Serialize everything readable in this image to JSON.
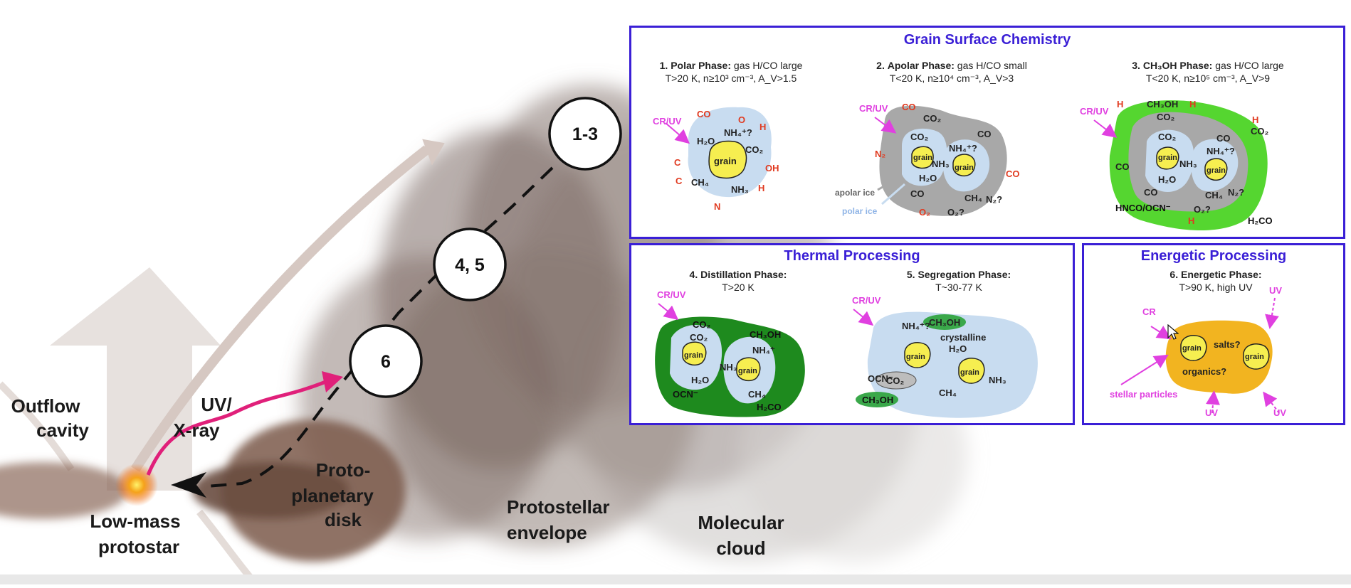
{
  "scene_labels": {
    "outflow_line1": "Outflow",
    "outflow_line2": "cavity",
    "uv_line1": "UV/",
    "uv_line2": "X-ray",
    "protostar_line1": "Low-mass",
    "protostar_line2": "protostar",
    "disk_line1": "Proto-",
    "disk_line2": "planetary",
    "disk_line3": "disk",
    "envelope_line1": "Protostellar",
    "envelope_line2": "envelope",
    "cloud_line1": "Molecular",
    "cloud_line2": "cloud"
  },
  "markers": [
    "1-3",
    "4, 5",
    "6"
  ],
  "colors": {
    "panel_border": "#3a1fd6",
    "uv_arrow": "#e0207a",
    "cr_uv": "#e040e0",
    "polar_ice": "#c8dcf0",
    "apolar_ice": "#a8a8a8",
    "ch3oh_layer": "#55d630",
    "distillation_layer": "#1e8a1e",
    "grain": "#f6ee50",
    "energetic_blob": "#f2b420",
    "red_species": "#e03a20"
  },
  "grain_surface": {
    "title": "Grain Surface Chemistry",
    "phase1": {
      "num": "1.",
      "name": "Polar Phase:",
      "cond1": "gas H/CO large",
      "cond2": "T>20 K, n≥10³ cm⁻³, A_V>1.5"
    },
    "phase2": {
      "num": "2.",
      "name": "Apolar Phase:",
      "cond1": "gas H/CO small",
      "cond2": "T<20 K, n≥10⁴ cm⁻³, A_V>3"
    },
    "phase3": {
      "num": "3.",
      "name": "CH₃OH Phase:",
      "cond1": "gas H/CO large",
      "cond2": "T<20 K, n≥10⁵ cm⁻³, A_V>9"
    },
    "p1_species": [
      "CR/UV",
      "CO",
      "O",
      "H",
      "H₂O",
      "NH₄⁺?",
      "CO₂",
      "OH",
      "H",
      "C",
      "CH₄",
      "NH₃",
      "H",
      "N",
      "grain"
    ],
    "p2_species": [
      "CR/UV",
      "CO",
      "CO₂",
      "CO",
      "N₂",
      "CO₂",
      "NH₄⁺?",
      "NH₃",
      "H₂O",
      "CO",
      "CH₄",
      "N₂?",
      "O₂",
      "O₂?",
      "CO",
      "grain",
      "grain",
      "apolar ice",
      "polar ice"
    ],
    "p3_species": [
      "CR/UV",
      "H",
      "CH₃OH",
      "H",
      "H",
      "CO₂",
      "CO₂",
      "CO₂",
      "CO",
      "CO",
      "NH₄⁺?",
      "NH₃",
      "H₂O",
      "CO",
      "CH₄",
      "N₂?",
      "O₂?",
      "HNCO/OCN⁻",
      "H",
      "H₂CO",
      "grain",
      "grain"
    ]
  },
  "thermal": {
    "title": "Thermal Processing",
    "phase4": {
      "num": "4.",
      "name": "Distillation Phase:",
      "cond1": "T>20 K"
    },
    "phase5": {
      "num": "5.",
      "name": "Segregation Phase:",
      "cond1": "T~30-77 K"
    },
    "p4_species": [
      "CR/UV",
      "CO₂",
      "CO₂",
      "CH₃OH",
      "NH₄⁺",
      "NH₃",
      "H₂O",
      "CH₄",
      "OCN⁻",
      "H₂CO",
      "grain",
      "grain"
    ],
    "p5_species": [
      "CR/UV",
      "CH₃OH",
      "NH₄⁺?",
      "crystalline",
      "H₂O",
      "NH₃",
      "OCN⁻",
      "CO₂",
      "CH₄",
      "CH₃OH",
      "grain",
      "grain"
    ]
  },
  "energetic": {
    "title": "Energetic Processing",
    "phase6": {
      "num": "6.",
      "name": "Energetic Phase:",
      "cond1": "T>90 K, high UV"
    },
    "p6_species": [
      "CR",
      "UV",
      "salts?",
      "organics?",
      "stellar particles",
      "UV",
      "UV",
      "grain",
      "grain"
    ]
  }
}
